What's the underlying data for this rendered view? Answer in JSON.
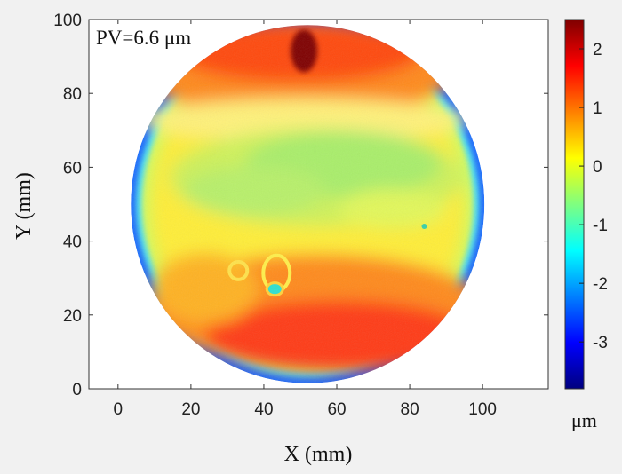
{
  "chart_data": {
    "type": "heatmap",
    "annotation": "PV=6.6 μm",
    "xlabel": "X (mm)",
    "ylabel": "Y (mm)",
    "xlim": [
      -8,
      118
    ],
    "ylim": [
      0,
      100
    ],
    "x_ticks": [
      0,
      20,
      40,
      60,
      80,
      100
    ],
    "y_ticks": [
      0,
      20,
      40,
      60,
      80,
      100
    ],
    "colorbar": {
      "range": [
        -3.8,
        2.5
      ],
      "ticks": [
        2,
        1,
        0,
        -1,
        -2,
        -3
      ],
      "unit": "μm",
      "colormap": "jet"
    },
    "aperture": {
      "center_x": 52,
      "center_y": 50,
      "radius": 48.5
    },
    "features": [
      {
        "x": 51,
        "y": 91.5,
        "value": 2.4
      },
      {
        "x": 43,
        "y": 27,
        "value": -1.3
      },
      {
        "x": 33,
        "y": 32,
        "value": 0.4
      },
      {
        "x": 84,
        "y": 44,
        "value": -1.0
      }
    ],
    "grid": false
  }
}
